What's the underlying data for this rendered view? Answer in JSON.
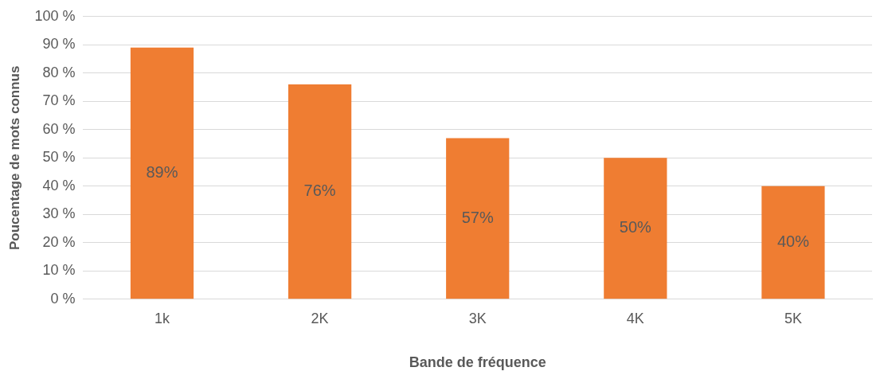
{
  "chart_data": {
    "type": "bar",
    "xlabel": "Bande de fréquence",
    "ylabel": "Poucentage de mots connus",
    "categories": [
      "1k",
      "2K",
      "3K",
      "4K",
      "5K"
    ],
    "values": [
      89,
      76,
      57,
      50,
      40
    ],
    "color": "#ef7d32",
    "value_labels": [
      "89%",
      "76%",
      "57%",
      "50%",
      "40%"
    ],
    "ylim": [
      0,
      100
    ],
    "yticks": [
      {
        "value": 0,
        "label": "0 %"
      },
      {
        "value": 10,
        "label": "10 %"
      },
      {
        "value": 20,
        "label": "20 %"
      },
      {
        "value": 30,
        "label": "30 %"
      },
      {
        "value": 40,
        "label": "40 %"
      },
      {
        "value": 50,
        "label": "50 %"
      },
      {
        "value": 60,
        "label": "60 %"
      },
      {
        "value": 70,
        "label": "70 %"
      },
      {
        "value": 80,
        "label": "80 %"
      },
      {
        "value": 90,
        "label": "90 %"
      },
      {
        "value": 100,
        "label": "100 %"
      }
    ],
    "grid": "y"
  }
}
